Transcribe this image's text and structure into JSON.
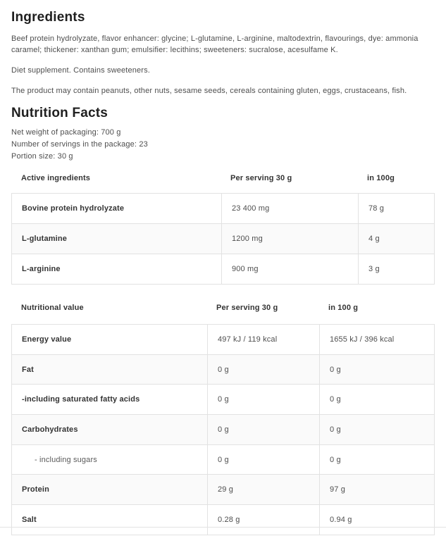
{
  "ingredients": {
    "title": "Ingredients",
    "paragraphs": [
      "Beef protein hydrolyzate, flavor enhancer: glycine; L-glutamine, L-arginine, maltodextrin, flavourings, dye: ammonia caramel; thickener: xanthan gum; emulsifier: lecithins; sweeteners: sucralose, acesulfame K.",
      "Diet supplement. Contains sweeteners.",
      "The product may contain peanuts, other nuts, sesame seeds, cereals containing gluten, eggs, crustaceans, fish."
    ]
  },
  "nutrition_facts": {
    "title": "Nutrition Facts",
    "info_lines": [
      "Net weight of packaging: 700 g",
      "Number of servings in the package: 23",
      "Portion size: 30 g"
    ],
    "active_ingredients_table": {
      "headers": [
        "Active ingredients",
        "Per serving 30 g",
        "in 100g"
      ],
      "rows": [
        {
          "label": "Bovine protein hydrolyzate",
          "per_serving": "23 400 mg",
          "per_100": "78 g"
        },
        {
          "label": "L-glutamine",
          "per_serving": "1200 mg",
          "per_100": "4 g"
        },
        {
          "label": "L-arginine",
          "per_serving": "900 mg",
          "per_100": "3 g"
        }
      ]
    },
    "nutritional_value_table": {
      "headers": [
        "Nutritional value",
        "Per serving 30 g",
        "in 100 g"
      ],
      "rows": [
        {
          "label": "Energy value",
          "per_serving": "497 kJ / 119 kcal",
          "per_100": "1655 kJ / 396 kcal"
        },
        {
          "label": "Fat",
          "per_serving": "0 g",
          "per_100": "0 g"
        },
        {
          "label": "-including saturated fatty acids",
          "per_serving": "0 g",
          "per_100": "0 g"
        },
        {
          "label": "Carbohydrates",
          "per_serving": "0 g",
          "per_100": "0 g"
        },
        {
          "label": "- including sugars",
          "per_serving": "0 g",
          "per_100": "0 g",
          "sub": true
        },
        {
          "label": "Protein",
          "per_serving": "29 g",
          "per_100": "97 g"
        },
        {
          "label": "Salt",
          "per_serving": "0.28 g",
          "per_100": "0.94 g"
        }
      ]
    }
  },
  "colors": {
    "heading_text": "#1f1f1f",
    "body_text": "#4e4e4e",
    "table_border": "#e2e2e2",
    "row_stripe": "#fafafa"
  }
}
